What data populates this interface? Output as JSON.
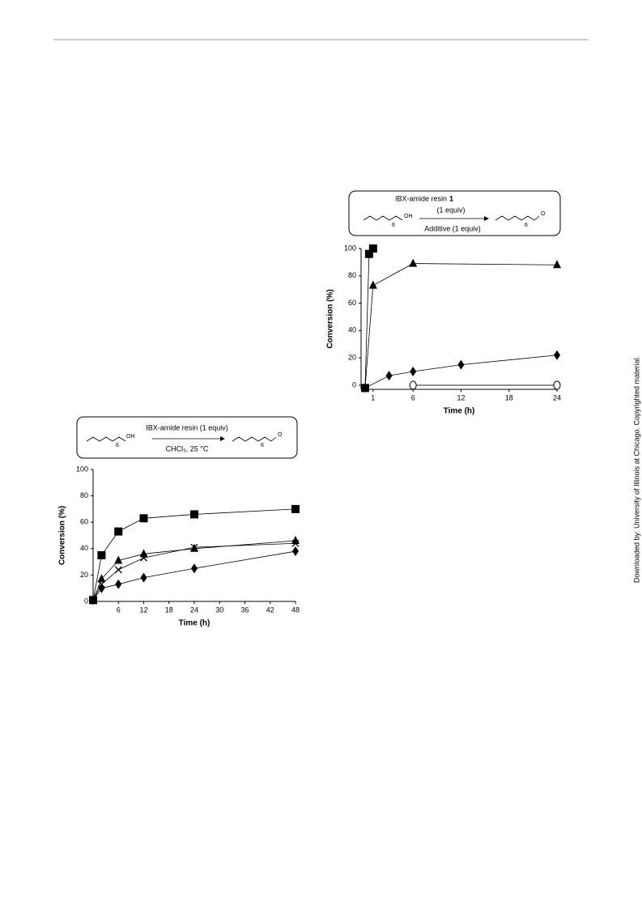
{
  "watermark": "Downloaded by: University of Illinois at Chicago. Copyrighted material.",
  "chart_data": [
    {
      "type": "scatter",
      "scheme": {
        "reagent": "IBX-amide resin (1 equiv)",
        "conditions": "CHCl₃, 25 °C",
        "start_label": "OH",
        "start_index": "6",
        "product_label": "O",
        "product_index": "6"
      },
      "xlabel": "Time (h)",
      "ylabel": "Conversion (%)",
      "xlim": [
        0,
        48
      ],
      "ylim": [
        0,
        100
      ],
      "xticks": [
        6,
        12,
        18,
        24,
        30,
        36,
        42,
        48
      ],
      "yticks": [
        0,
        20,
        40,
        60,
        80,
        100
      ],
      "series": [
        {
          "marker": "square",
          "color": "#000000",
          "x": [
            0,
            2,
            6,
            12,
            24,
            48
          ],
          "values": [
            1,
            35,
            53,
            63,
            66,
            70
          ]
        },
        {
          "marker": "triangle",
          "color": "#000000",
          "x": [
            0,
            2,
            6,
            12,
            24,
            48
          ],
          "values": [
            1,
            17,
            31,
            36,
            40,
            46
          ]
        },
        {
          "marker": "cross",
          "color": "#000000",
          "x": [
            0,
            2,
            6,
            12,
            24,
            48
          ],
          "values": [
            1,
            13,
            24,
            33,
            41,
            44
          ]
        },
        {
          "marker": "diamond",
          "color": "#000000",
          "x": [
            0,
            2,
            6,
            12,
            24,
            48
          ],
          "values": [
            1,
            10,
            13,
            18,
            25,
            38
          ]
        }
      ]
    },
    {
      "type": "scatter",
      "scheme": {
        "reagent": "IBX-amide resin",
        "reagent_number": "1",
        "conditions": "(1 equiv)",
        "additive": "Additive (1 equiv)",
        "start_label": "OH",
        "start_index": "6",
        "product_label": "O",
        "product_index": "6"
      },
      "xlabel": "Time (h)",
      "ylabel": "Conversion (%)",
      "xlim": [
        -0.5,
        24
      ],
      "ylim": [
        -3,
        100
      ],
      "xticks": [
        1,
        6,
        12,
        18,
        24
      ],
      "yticks": [
        0,
        20,
        40,
        60,
        80,
        100
      ],
      "series": [
        {
          "marker": "square",
          "color": "#000000",
          "x": [
            0,
            0.5,
            1
          ],
          "values": [
            -2,
            96,
            100
          ]
        },
        {
          "marker": "triangle",
          "color": "#000000",
          "x": [
            0,
            1,
            6,
            24
          ],
          "values": [
            -2,
            73,
            89,
            88
          ]
        },
        {
          "marker": "diamond",
          "color": "#000000",
          "x": [
            0,
            3,
            6,
            12,
            24
          ],
          "values": [
            -2,
            7,
            10,
            15,
            22
          ]
        },
        {
          "marker": "circle",
          "color": "#000000",
          "x": [
            6,
            24
          ],
          "values": [
            0,
            0
          ]
        }
      ]
    }
  ]
}
